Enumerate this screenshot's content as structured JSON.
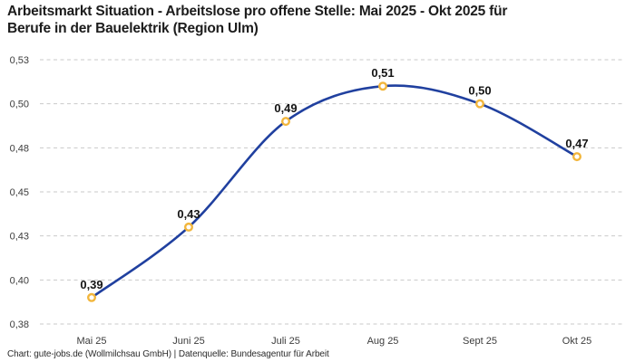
{
  "title": {
    "line1": "Arbeitsmarkt Situation - Arbeitslose pro offene Stelle: Mai 2025 - Okt 2025 für",
    "line2": "Berufe in der Bauelektrik (Region Ulm)"
  },
  "footer": {
    "attribution": "Chart: gute-jobs.de (Wollmilchsau GmbH) | Datenquelle: Bundesagentur für Arbeit"
  },
  "colors": {
    "line": "#20409f",
    "marker_stroke": "#f2b63c",
    "marker_fill": "#ffffff",
    "grid": "#c9c9c9",
    "title_text": "#1c1c1c",
    "tick_text": "#3c3c3c",
    "point_label_text": "#141414",
    "background": "#ffffff"
  },
  "chart_data": {
    "type": "line",
    "title": "Arbeitsmarkt Situation - Arbeitslose pro offene Stelle: Mai 2025 - Okt 2025 für Berufe in der Bauelektrik (Region Ulm)",
    "categories": [
      "Mai 25",
      "Juni 25",
      "Juli 25",
      "Aug 25",
      "Sept 25",
      "Okt 25"
    ],
    "values": [
      0.39,
      0.43,
      0.49,
      0.51,
      0.5,
      0.47
    ],
    "point_labels": [
      "0,39",
      "0,43",
      "0,49",
      "0,51",
      "0,50",
      "0,47"
    ],
    "y_ticks": [
      0.375,
      0.4,
      0.425,
      0.45,
      0.475,
      0.5,
      0.525
    ],
    "y_tick_labels": [
      "0,38",
      "0,40",
      "0,43",
      "0,45",
      "0,48",
      "0,50",
      "0,53"
    ],
    "ylim": [
      0.375,
      0.525
    ],
    "xlabel": "",
    "ylabel": "",
    "legend": "none",
    "grid": "dashed-horizontal",
    "line_style": "smooth-spline",
    "marker_style": "open-circle"
  }
}
